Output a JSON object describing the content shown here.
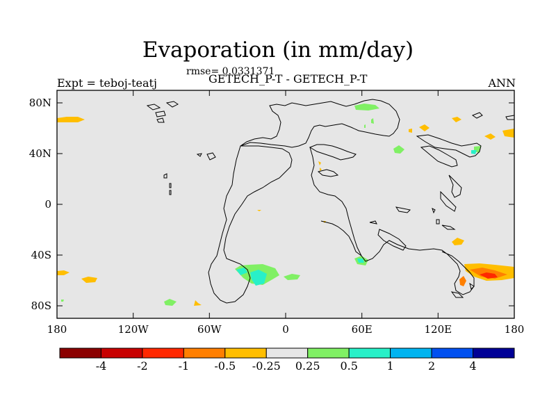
{
  "title": "Evaporation (in mm/day)",
  "rmse_text": "rmse= 0.0331371",
  "subtitle": "GETECH_P-T - GETECH_P-T",
  "expt_label": "Expt = teboj-teatj",
  "season": "ANN",
  "lat_labels": [
    "80N",
    "40N",
    "0",
    "40S",
    "80S"
  ],
  "lon_labels": [
    "180",
    "120W",
    "60W",
    "0",
    "60E",
    "120E",
    "180"
  ],
  "colorbar": {
    "colors": [
      "#8b0000",
      "#c80000",
      "#ff2800",
      "#ff7f00",
      "#ffbe00",
      "#e6e6e6",
      "#80f064",
      "#28f0c8",
      "#00b4f0",
      "#0050f0",
      "#000096"
    ],
    "tick_labels": [
      "-4",
      "-2",
      "-1",
      "-0.5",
      "-0.25",
      "0.25",
      "0.5",
      "1",
      "2",
      "4"
    ]
  }
}
